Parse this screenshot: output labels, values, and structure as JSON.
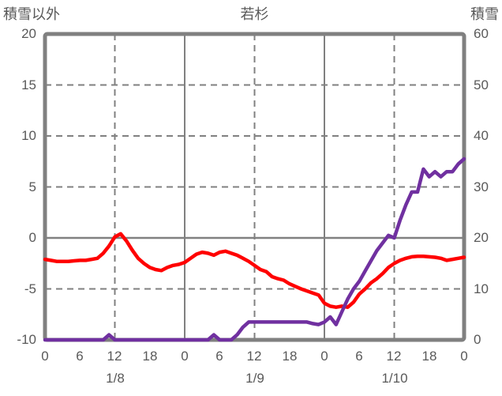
{
  "header": {
    "left_axis_title": "積雪以外",
    "title": "若杉",
    "right_axis_title": "積雪"
  },
  "colors": {
    "red_series": "#FF0000",
    "purple_series": "#7030A0",
    "grid": "#808080",
    "frame": "#808080",
    "text": "#595959",
    "background": "#FFFFFF"
  },
  "chart_data": {
    "type": "line",
    "title": "若杉",
    "left_axis": {
      "title": "積雪以外",
      "min": -10,
      "max": 20,
      "ticks": [
        "20",
        "15",
        "10",
        "5",
        "0",
        "-5",
        "-10"
      ]
    },
    "right_axis": {
      "title": "積雪",
      "min": 0,
      "max": 60,
      "ticks": [
        "60",
        "50",
        "40",
        "30",
        "20",
        "10",
        "0"
      ]
    },
    "x_axis": {
      "unit": "hour",
      "total_hours": 72,
      "hour_ticks": [
        "0",
        "6",
        "12",
        "18",
        "0",
        "6",
        "12",
        "18",
        "0",
        "6",
        "12",
        "18",
        "0"
      ],
      "day_labels": [
        "1/8",
        "1/9",
        "1/10"
      ]
    },
    "gridlines": {
      "horizontal_dashed": [
        15,
        10,
        5,
        -5
      ],
      "horizontal_solid": [
        0
      ],
      "vertical_solid_hours": [
        24,
        48
      ],
      "vertical_dashed_hours": [
        12,
        36,
        60
      ]
    },
    "series": [
      {
        "name": "red-line",
        "axis": "left",
        "color": "#FF0000",
        "values": [
          -2.1,
          -2.2,
          -2.3,
          -2.3,
          -2.3,
          -2.25,
          -2.2,
          -2.2,
          -2.1,
          -2.0,
          -1.5,
          -0.8,
          0.1,
          0.4,
          -0.3,
          -1.2,
          -2.0,
          -2.5,
          -2.9,
          -3.1,
          -3.2,
          -2.9,
          -2.7,
          -2.6,
          -2.4,
          -2.0,
          -1.6,
          -1.4,
          -1.5,
          -1.7,
          -1.4,
          -1.3,
          -1.5,
          -1.7,
          -2.0,
          -2.3,
          -2.7,
          -3.1,
          -3.3,
          -3.8,
          -4.0,
          -4.15,
          -4.5,
          -4.75,
          -5.0,
          -5.2,
          -5.4,
          -5.6,
          -6.4,
          -6.7,
          -6.8,
          -6.7,
          -6.8,
          -6.3,
          -5.5,
          -5.0,
          -4.4,
          -4.0,
          -3.5,
          -2.9,
          -2.5,
          -2.2,
          -2.0,
          -1.85,
          -1.8,
          -1.8,
          -1.85,
          -1.9,
          -2.0,
          -2.2,
          -2.1,
          -2.0,
          -1.9
        ]
      },
      {
        "name": "purple-line",
        "axis": "right",
        "color": "#7030A0",
        "values": [
          0,
          0,
          0,
          0,
          0,
          0,
          0,
          0,
          0,
          0,
          0,
          1,
          0,
          0,
          0,
          0,
          0,
          0,
          0,
          0,
          0,
          0,
          0,
          0,
          0,
          0,
          0,
          0,
          0,
          1,
          0,
          0,
          0,
          1,
          2.5,
          3.5,
          3.5,
          3.5,
          3.5,
          3.5,
          3.5,
          3.5,
          3.5,
          3.5,
          3.5,
          3.5,
          3.2,
          3.0,
          3.5,
          4.5,
          3.0,
          5.5,
          8,
          10,
          11.5,
          13.5,
          15.5,
          17.5,
          19,
          20.5,
          20,
          23.5,
          26.5,
          29,
          29,
          33.5,
          32,
          33,
          32,
          33,
          33,
          34.5,
          35.5
        ]
      }
    ]
  }
}
